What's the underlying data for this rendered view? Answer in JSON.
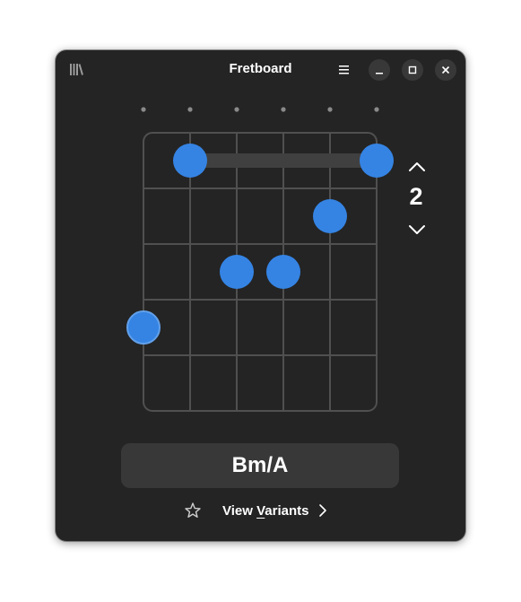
{
  "app": {
    "title": "Fretboard"
  },
  "header": {
    "library_icon": "library-icon",
    "menu_icon": "hamburger-menu-icon",
    "window_controls": [
      "minimize",
      "maximize",
      "close"
    ]
  },
  "fretboard": {
    "strings": 6,
    "frets_shown": 5,
    "start_fret": "2",
    "barre": {
      "fret": 1,
      "from_string": 2,
      "to_string": 6
    },
    "dots": [
      {
        "string": 2,
        "fret": 1
      },
      {
        "string": 6,
        "fret": 1
      },
      {
        "string": 5,
        "fret": 2
      },
      {
        "string": 3,
        "fret": 3
      },
      {
        "string": 4,
        "fret": 3
      },
      {
        "string": 1,
        "fret": 4,
        "root": true
      }
    ]
  },
  "chord": {
    "name": "Bm/A"
  },
  "variants": {
    "prefix": "View ",
    "mnemonic": "V",
    "rest": "ariants"
  },
  "colors": {
    "window_bg": "#242424",
    "accent_dot": "#3584e4",
    "root_dot": "#62a0ea",
    "grid": "#505050",
    "barre": "#404040",
    "button_bg": "#383838"
  }
}
